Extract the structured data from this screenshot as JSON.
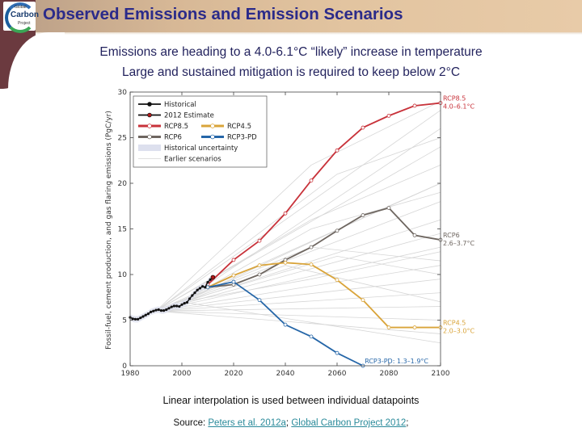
{
  "slide": {
    "title": "Observed Emissions and Emission Scenarios",
    "subtitle_lines": [
      "Emissions are heading to a 4.0-6.1°C “likely” increase in temperature",
      "Large and sustained mitigation is required to keep below 2°C"
    ],
    "logo": {
      "line1": "Global",
      "line2": "Carbon",
      "line3": "Project"
    },
    "footnote": "Linear interpolation is used between individual datapoints",
    "source_prefix": "Source: ",
    "source_links": [
      "Peters et al. 2012a",
      "Global Carbon Project 2012"
    ],
    "source_sep": "; ",
    "source_suffix": ";"
  },
  "colors": {
    "title": "#2b2b8a",
    "historical": "#111111",
    "estimate": "#b11a1a",
    "rcp85": "#c8323a",
    "rcp6": "#6e6660",
    "rcp45": "#d9a43a",
    "rcp3pd": "#2566a8",
    "earlier": "#d6d6d6",
    "uncertainty": "#dde0ee"
  },
  "chart_data": {
    "type": "line",
    "title": "",
    "xlabel": "",
    "ylabel": "Fossil-fuel, cement production, and gas flaring emissions (PgC/yr)",
    "xlim": [
      1980,
      2100
    ],
    "ylim": [
      0,
      30
    ],
    "xticks": [
      1980,
      2000,
      2020,
      2040,
      2060,
      2080,
      2100
    ],
    "yticks": [
      0,
      5,
      10,
      15,
      20,
      25,
      30
    ],
    "legend_position": "top-left",
    "legend": [
      {
        "key": "historical",
        "label": "Historical"
      },
      {
        "key": "estimate",
        "label": "2012 Estimate"
      },
      {
        "key": "rcp85",
        "label": "RCP8.5"
      },
      {
        "key": "rcp45",
        "label": "RCP4.5"
      },
      {
        "key": "rcp6",
        "label": "RCP6"
      },
      {
        "key": "rcp3pd",
        "label": "RCP3-PD"
      },
      {
        "key": "uncertainty",
        "label": "Historical uncertainty"
      },
      {
        "key": "earlier",
        "label": "Earlier scenarios"
      }
    ],
    "historical": {
      "x": [
        1980,
        1981,
        1982,
        1983,
        1984,
        1985,
        1986,
        1987,
        1988,
        1989,
        1990,
        1991,
        1992,
        1993,
        1994,
        1995,
        1996,
        1997,
        1998,
        1999,
        2000,
        2001,
        2002,
        2003,
        2004,
        2005,
        2006,
        2007,
        2008,
        2009,
        2010,
        2011
      ],
      "y": [
        5.3,
        5.15,
        5.1,
        5.1,
        5.25,
        5.4,
        5.55,
        5.7,
        5.9,
        6.0,
        6.1,
        6.15,
        6.05,
        6.05,
        6.15,
        6.3,
        6.45,
        6.55,
        6.55,
        6.5,
        6.7,
        6.85,
        6.95,
        7.35,
        7.7,
        8.0,
        8.3,
        8.5,
        8.7,
        8.6,
        9.15,
        9.45
      ]
    },
    "estimate_2012": {
      "x": 2012,
      "y": 9.7
    },
    "series": [
      {
        "key": "rcp85",
        "name": "RCP8.5",
        "end_label": [
          "RCP8.5",
          "4.0–6.1°C"
        ],
        "x": [
          2010,
          2020,
          2030,
          2040,
          2050,
          2060,
          2070,
          2080,
          2090,
          2100
        ],
        "y": [
          8.9,
          11.6,
          13.7,
          16.7,
          20.3,
          23.6,
          26.1,
          27.4,
          28.5,
          28.8
        ]
      },
      {
        "key": "rcp6",
        "name": "RCP6",
        "end_label": [
          "RCP6",
          "2.6–3.7°C"
        ],
        "x": [
          2010,
          2020,
          2030,
          2040,
          2050,
          2060,
          2070,
          2080,
          2090,
          2100
        ],
        "y": [
          8.6,
          8.9,
          10.0,
          11.6,
          13.0,
          14.8,
          16.5,
          17.3,
          14.3,
          13.8
        ]
      },
      {
        "key": "rcp45",
        "name": "RCP4.5",
        "end_label": [
          "RCP4.5",
          "2.0–3.0°C"
        ],
        "x": [
          2010,
          2020,
          2030,
          2040,
          2050,
          2060,
          2070,
          2080,
          2090,
          2100
        ],
        "y": [
          8.6,
          9.9,
          11.0,
          11.3,
          11.1,
          9.4,
          7.2,
          4.2,
          4.2,
          4.2
        ]
      },
      {
        "key": "rcp3pd",
        "name": "RCP3-PD",
        "end_label": [
          "RCP3-PD: 1.3–1.9°C"
        ],
        "x": [
          2010,
          2020,
          2030,
          2040,
          2050,
          2060,
          2070
        ],
        "y": [
          8.6,
          9.2,
          7.2,
          4.5,
          3.2,
          1.4,
          0.0
        ]
      }
    ],
    "earlier_scenarios": [
      {
        "x": [
          1990,
          2100
        ],
        "y": [
          6.0,
          28.0
        ]
      },
      {
        "x": [
          1990,
          2100
        ],
        "y": [
          6.0,
          24.0
        ]
      },
      {
        "x": [
          1990,
          2050,
          2100
        ],
        "y": [
          6.0,
          22.0,
          29.0
        ]
      },
      {
        "x": [
          1990,
          2060,
          2100
        ],
        "y": [
          6.0,
          21.0,
          25.0
        ]
      },
      {
        "x": [
          1990,
          2100
        ],
        "y": [
          6.0,
          20.0
        ]
      },
      {
        "x": [
          1990,
          2100
        ],
        "y": [
          6.0,
          18.0
        ]
      },
      {
        "x": [
          1990,
          2050,
          2100
        ],
        "y": [
          6.0,
          16.0,
          22.0
        ]
      },
      {
        "x": [
          1990,
          2100
        ],
        "y": [
          6.0,
          16.0
        ]
      },
      {
        "x": [
          1990,
          2100
        ],
        "y": [
          6.0,
          14.5
        ]
      },
      {
        "x": [
          1990,
          2050,
          2100
        ],
        "y": [
          6.0,
          13.0,
          11.5
        ]
      },
      {
        "x": [
          1990,
          2100
        ],
        "y": [
          6.0,
          13.0
        ]
      },
      {
        "x": [
          1990,
          2100
        ],
        "y": [
          6.0,
          11.0
        ]
      },
      {
        "x": [
          1990,
          2100
        ],
        "y": [
          6.0,
          9.5
        ]
      },
      {
        "x": [
          1990,
          2100
        ],
        "y": [
          6.0,
          8.0
        ]
      },
      {
        "x": [
          1990,
          2100
        ],
        "y": [
          6.0,
          6.5
        ]
      },
      {
        "x": [
          1990,
          2100
        ],
        "y": [
          6.0,
          5.0
        ]
      },
      {
        "x": [
          1990,
          2100
        ],
        "y": [
          6.0,
          3.5
        ]
      },
      {
        "x": [
          2000,
          2050,
          2100
        ],
        "y": [
          7.0,
          15.0,
          19.0
        ]
      },
      {
        "x": [
          2000,
          2060,
          2100
        ],
        "y": [
          7.0,
          12.0,
          10.0
        ]
      },
      {
        "x": [
          2000,
          2040,
          2100
        ],
        "y": [
          7.0,
          11.0,
          7.0
        ]
      },
      {
        "x": [
          2000,
          2100
        ],
        "y": [
          7.0,
          26.0
        ]
      },
      {
        "x": [
          2000,
          2080,
          2100
        ],
        "y": [
          7.0,
          17.5,
          20.0
        ]
      },
      {
        "x": [
          2000,
          2050,
          2100
        ],
        "y": [
          7.0,
          9.5,
          12.5
        ]
      },
      {
        "x": [
          2000,
          2100
        ],
        "y": [
          7.0,
          2.5
        ]
      }
    ]
  }
}
